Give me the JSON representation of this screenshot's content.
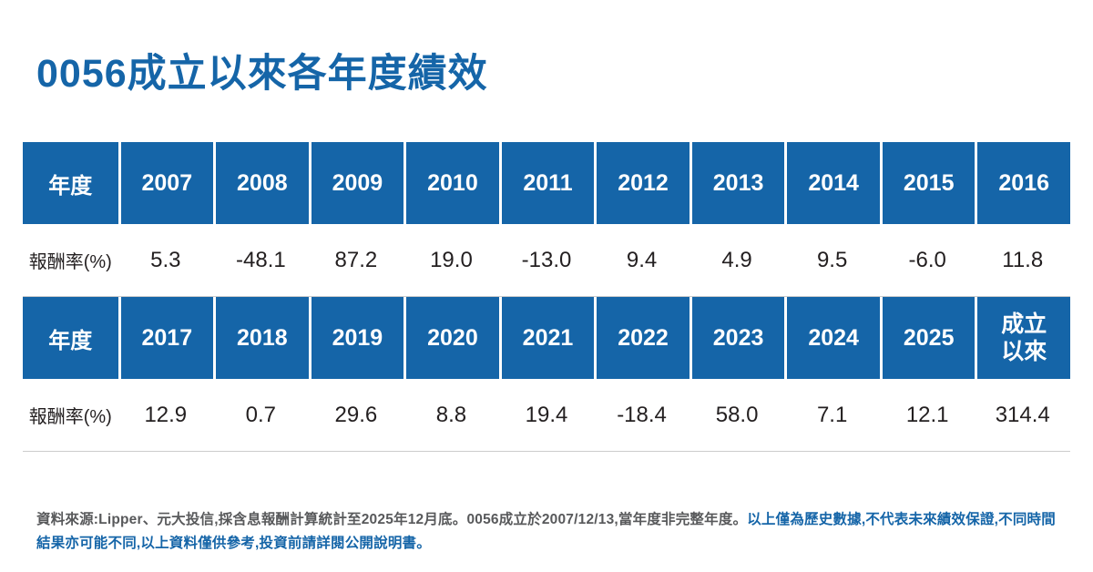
{
  "page_title": "0056成立以來各年度績效",
  "chart_data": {
    "type": "table",
    "title": "0056成立以來各年度績效",
    "year_header_label": "年度",
    "return_row_label": "報酬率(%)",
    "tables": [
      {
        "columns": [
          "2007",
          "2008",
          "2009",
          "2010",
          "2011",
          "2012",
          "2013",
          "2014",
          "2015",
          "2016"
        ],
        "values": [
          "5.3",
          "-48.1",
          "87.2",
          "19.0",
          "-13.0",
          "9.4",
          "4.9",
          "9.5",
          "-6.0",
          "11.8"
        ]
      },
      {
        "columns": [
          "2017",
          "2018",
          "2019",
          "2020",
          "2021",
          "2022",
          "2023",
          "2024",
          "2025",
          "成立以來"
        ],
        "values": [
          "12.9",
          "0.7",
          "29.6",
          "8.8",
          "19.4",
          "-18.4",
          "58.0",
          "7.1",
          "12.1",
          "314.4"
        ]
      }
    ]
  },
  "footer": {
    "source_text": "資料來源:Lipper、元大投信,採含息報酬計算統計至2025年12月底。0056成立於2007/12/13,當年度非完整年度。",
    "disclaimer_text": "以上僅為歷史數據,不代表未來績效保證,不同時間結果亦可能不同,以上資料僅供參考,投資前請詳閱公開說明書。"
  },
  "colors": {
    "brand_blue": "#1565a8",
    "text_dark": "#231f20",
    "footer_gray": "#58595b"
  }
}
